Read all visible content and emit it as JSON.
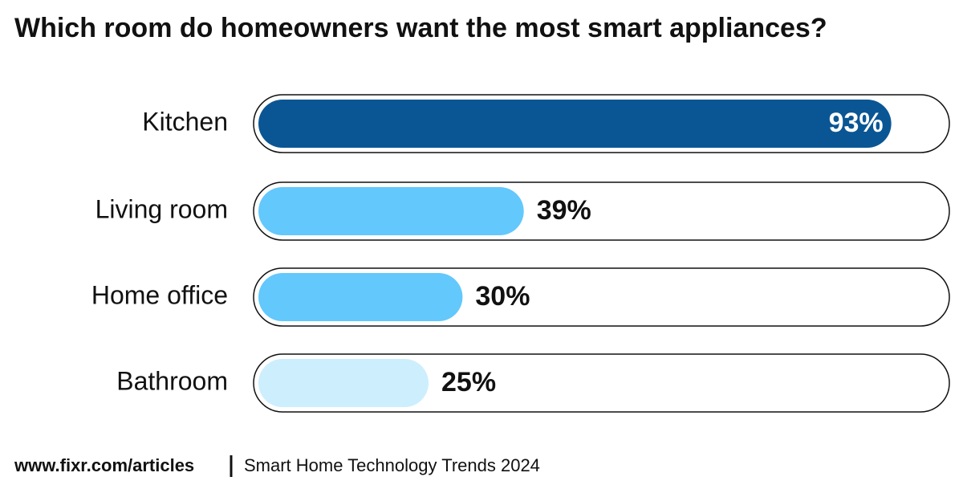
{
  "chart_data": {
    "type": "bar",
    "orientation": "horizontal",
    "title": "Which room do homeowners want the most smart appliances?",
    "categories": [
      "Kitchen",
      "Living room",
      "Home office",
      "Bathroom"
    ],
    "values": [
      93,
      39,
      30,
      25
    ],
    "value_labels": [
      "93%",
      "39%",
      "30%",
      "25%"
    ],
    "colors": [
      "#0a5694",
      "#63c8fc",
      "#63c8fc",
      "#cdeefd"
    ],
    "xlim": [
      0,
      100
    ],
    "source": "www.fixr.com/articles",
    "note": "Smart Home Technology Trends 2024"
  }
}
